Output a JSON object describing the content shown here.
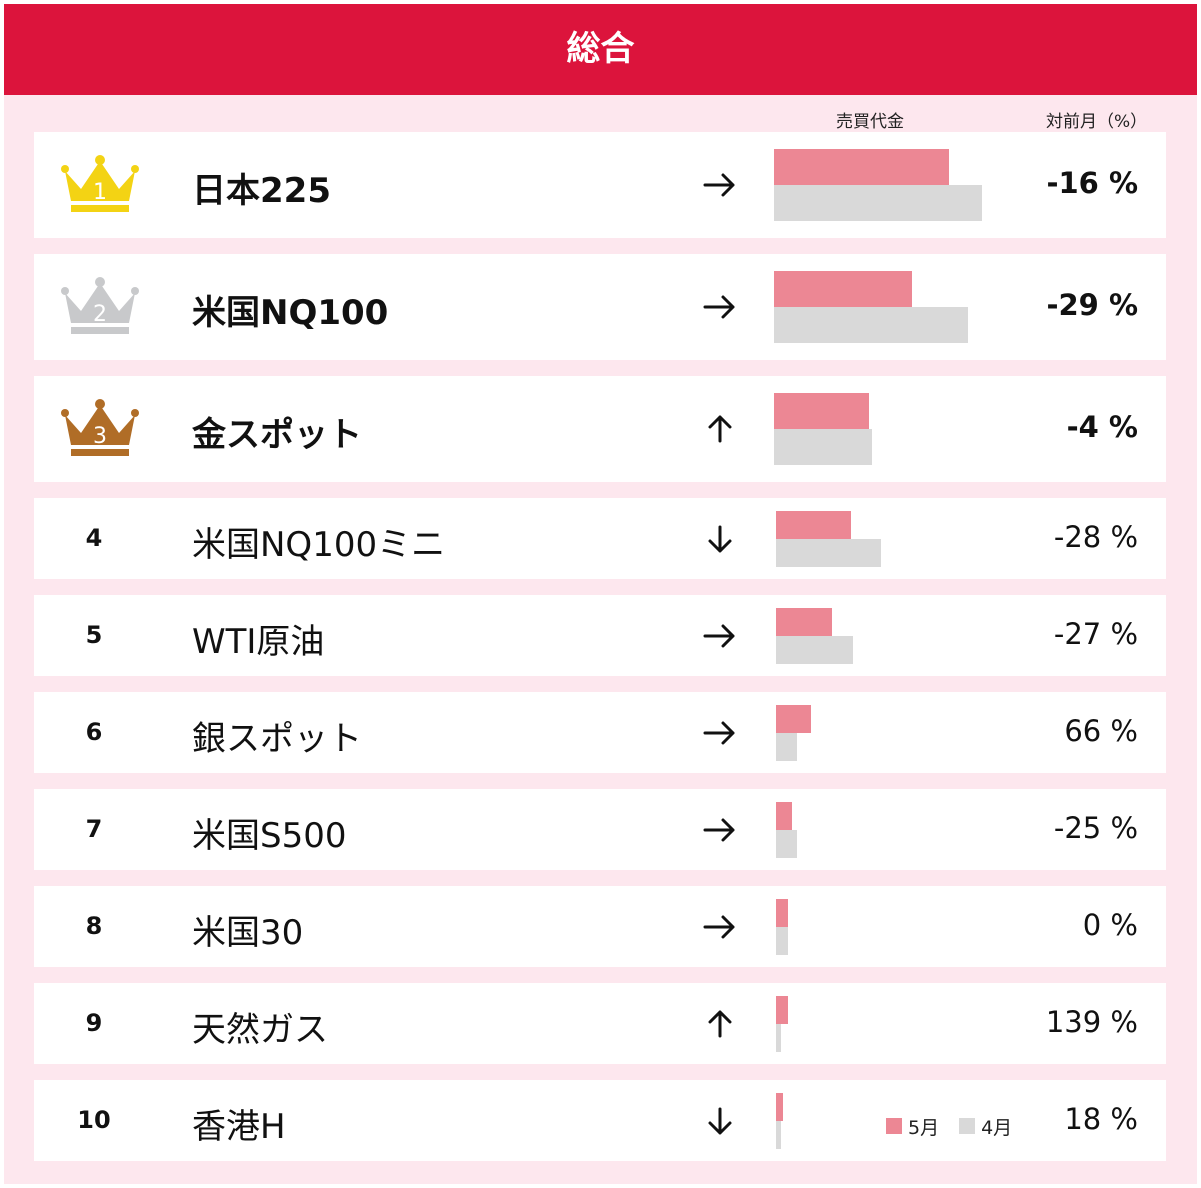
{
  "title": "総合",
  "columns": {
    "volume": "売買代金",
    "mom": "対前月（%）"
  },
  "legend": [
    {
      "label": "5月",
      "color": "#ec8794"
    },
    {
      "label": "4月",
      "color": "#d9d9d9"
    }
  ],
  "rows": [
    {
      "rank": "1",
      "name": "日本225",
      "trend": "right",
      "pct": "-16 %"
    },
    {
      "rank": "2",
      "name": "米国NQ100",
      "trend": "right",
      "pct": "-29 %"
    },
    {
      "rank": "3",
      "name": "金スポット",
      "trend": "up",
      "pct": "-4 %"
    },
    {
      "rank": "4",
      "name": "米国NQ100ミニ",
      "trend": "down",
      "pct": "-28 %"
    },
    {
      "rank": "5",
      "name": "WTI原油",
      "trend": "right",
      "pct": "-27 %"
    },
    {
      "rank": "6",
      "name": "銀スポット",
      "trend": "right",
      "pct": "66 %"
    },
    {
      "rank": "7",
      "name": "米国S500",
      "trend": "right",
      "pct": "-25 %"
    },
    {
      "rank": "8",
      "name": "米国30",
      "trend": "right",
      "pct": "0 %"
    },
    {
      "rank": "9",
      "name": "天然ガス",
      "trend": "up",
      "pct": "139 %"
    },
    {
      "rank": "10",
      "name": "香港H",
      "trend": "down",
      "pct": "18 %"
    }
  ],
  "crown_colors": [
    "#f3d314",
    "#c8c9cb",
    "#b06d27"
  ],
  "chart_data": {
    "type": "bar",
    "orientation": "horizontal",
    "categories": [
      "日本225",
      "米国NQ100",
      "金スポット",
      "米国NQ100ミニ",
      "WTI原油",
      "銀スポット",
      "米国S500",
      "米国30",
      "天然ガス",
      "香港H"
    ],
    "series": [
      {
        "name": "5月",
        "values": [
          100,
          79,
          54,
          43,
          32,
          20,
          9,
          7,
          7,
          4
        ]
      },
      {
        "name": "4月",
        "values": [
          119,
          111,
          56,
          60,
          44,
          12,
          12,
          7,
          3,
          3
        ]
      }
    ],
    "pct_change": [
      -16,
      -29,
      -4,
      -28,
      -27,
      66,
      -25,
      0,
      139,
      18
    ]
  }
}
